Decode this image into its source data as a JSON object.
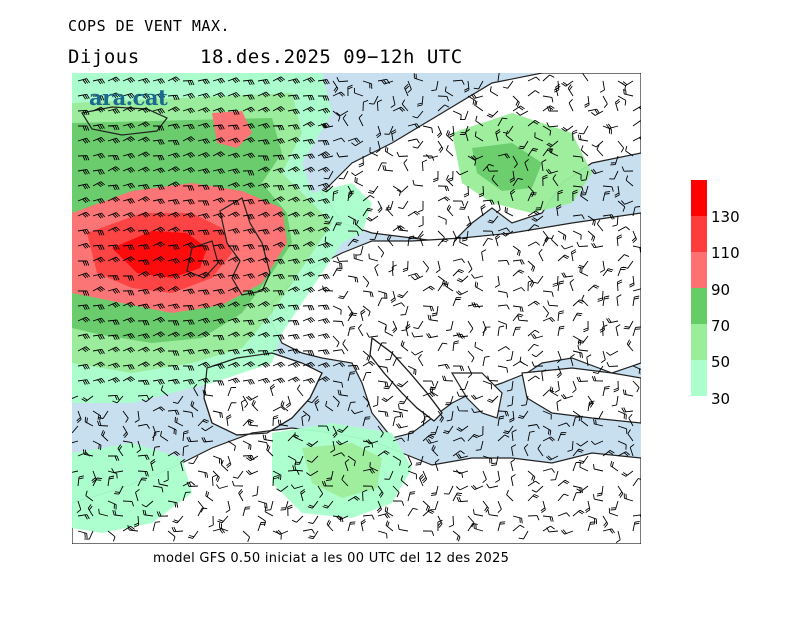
{
  "header": {
    "title": "COPS DE VENT MAX.",
    "day": "Dijous",
    "date_range": "18.des.2025 09−12h UTC"
  },
  "logo": {
    "text": "ara.cat"
  },
  "footer": {
    "text": "model GFS 0.50 iniciat a les 00 UTC del 12 des 2025"
  },
  "legend": {
    "labels": [
      "130",
      "110",
      "90",
      "70",
      "50",
      "30"
    ],
    "bins": [
      {
        "min": 130,
        "max": 150,
        "color": "#ff0000"
      },
      {
        "min": 110,
        "max": 130,
        "color": "#ff3c3c"
      },
      {
        "min": 90,
        "max": 110,
        "color": "#ff7070"
      },
      {
        "min": 70,
        "max": 90,
        "color": "#66cc66"
      },
      {
        "min": 50,
        "max": 70,
        "color": "#99ee99"
      },
      {
        "min": 30,
        "max": 50,
        "color": "#aaffcc"
      }
    ]
  },
  "colors": {
    "sea": "#c8dff0",
    "land": "#ffffff",
    "coast": "#222222",
    "barb": "#000000"
  }
}
